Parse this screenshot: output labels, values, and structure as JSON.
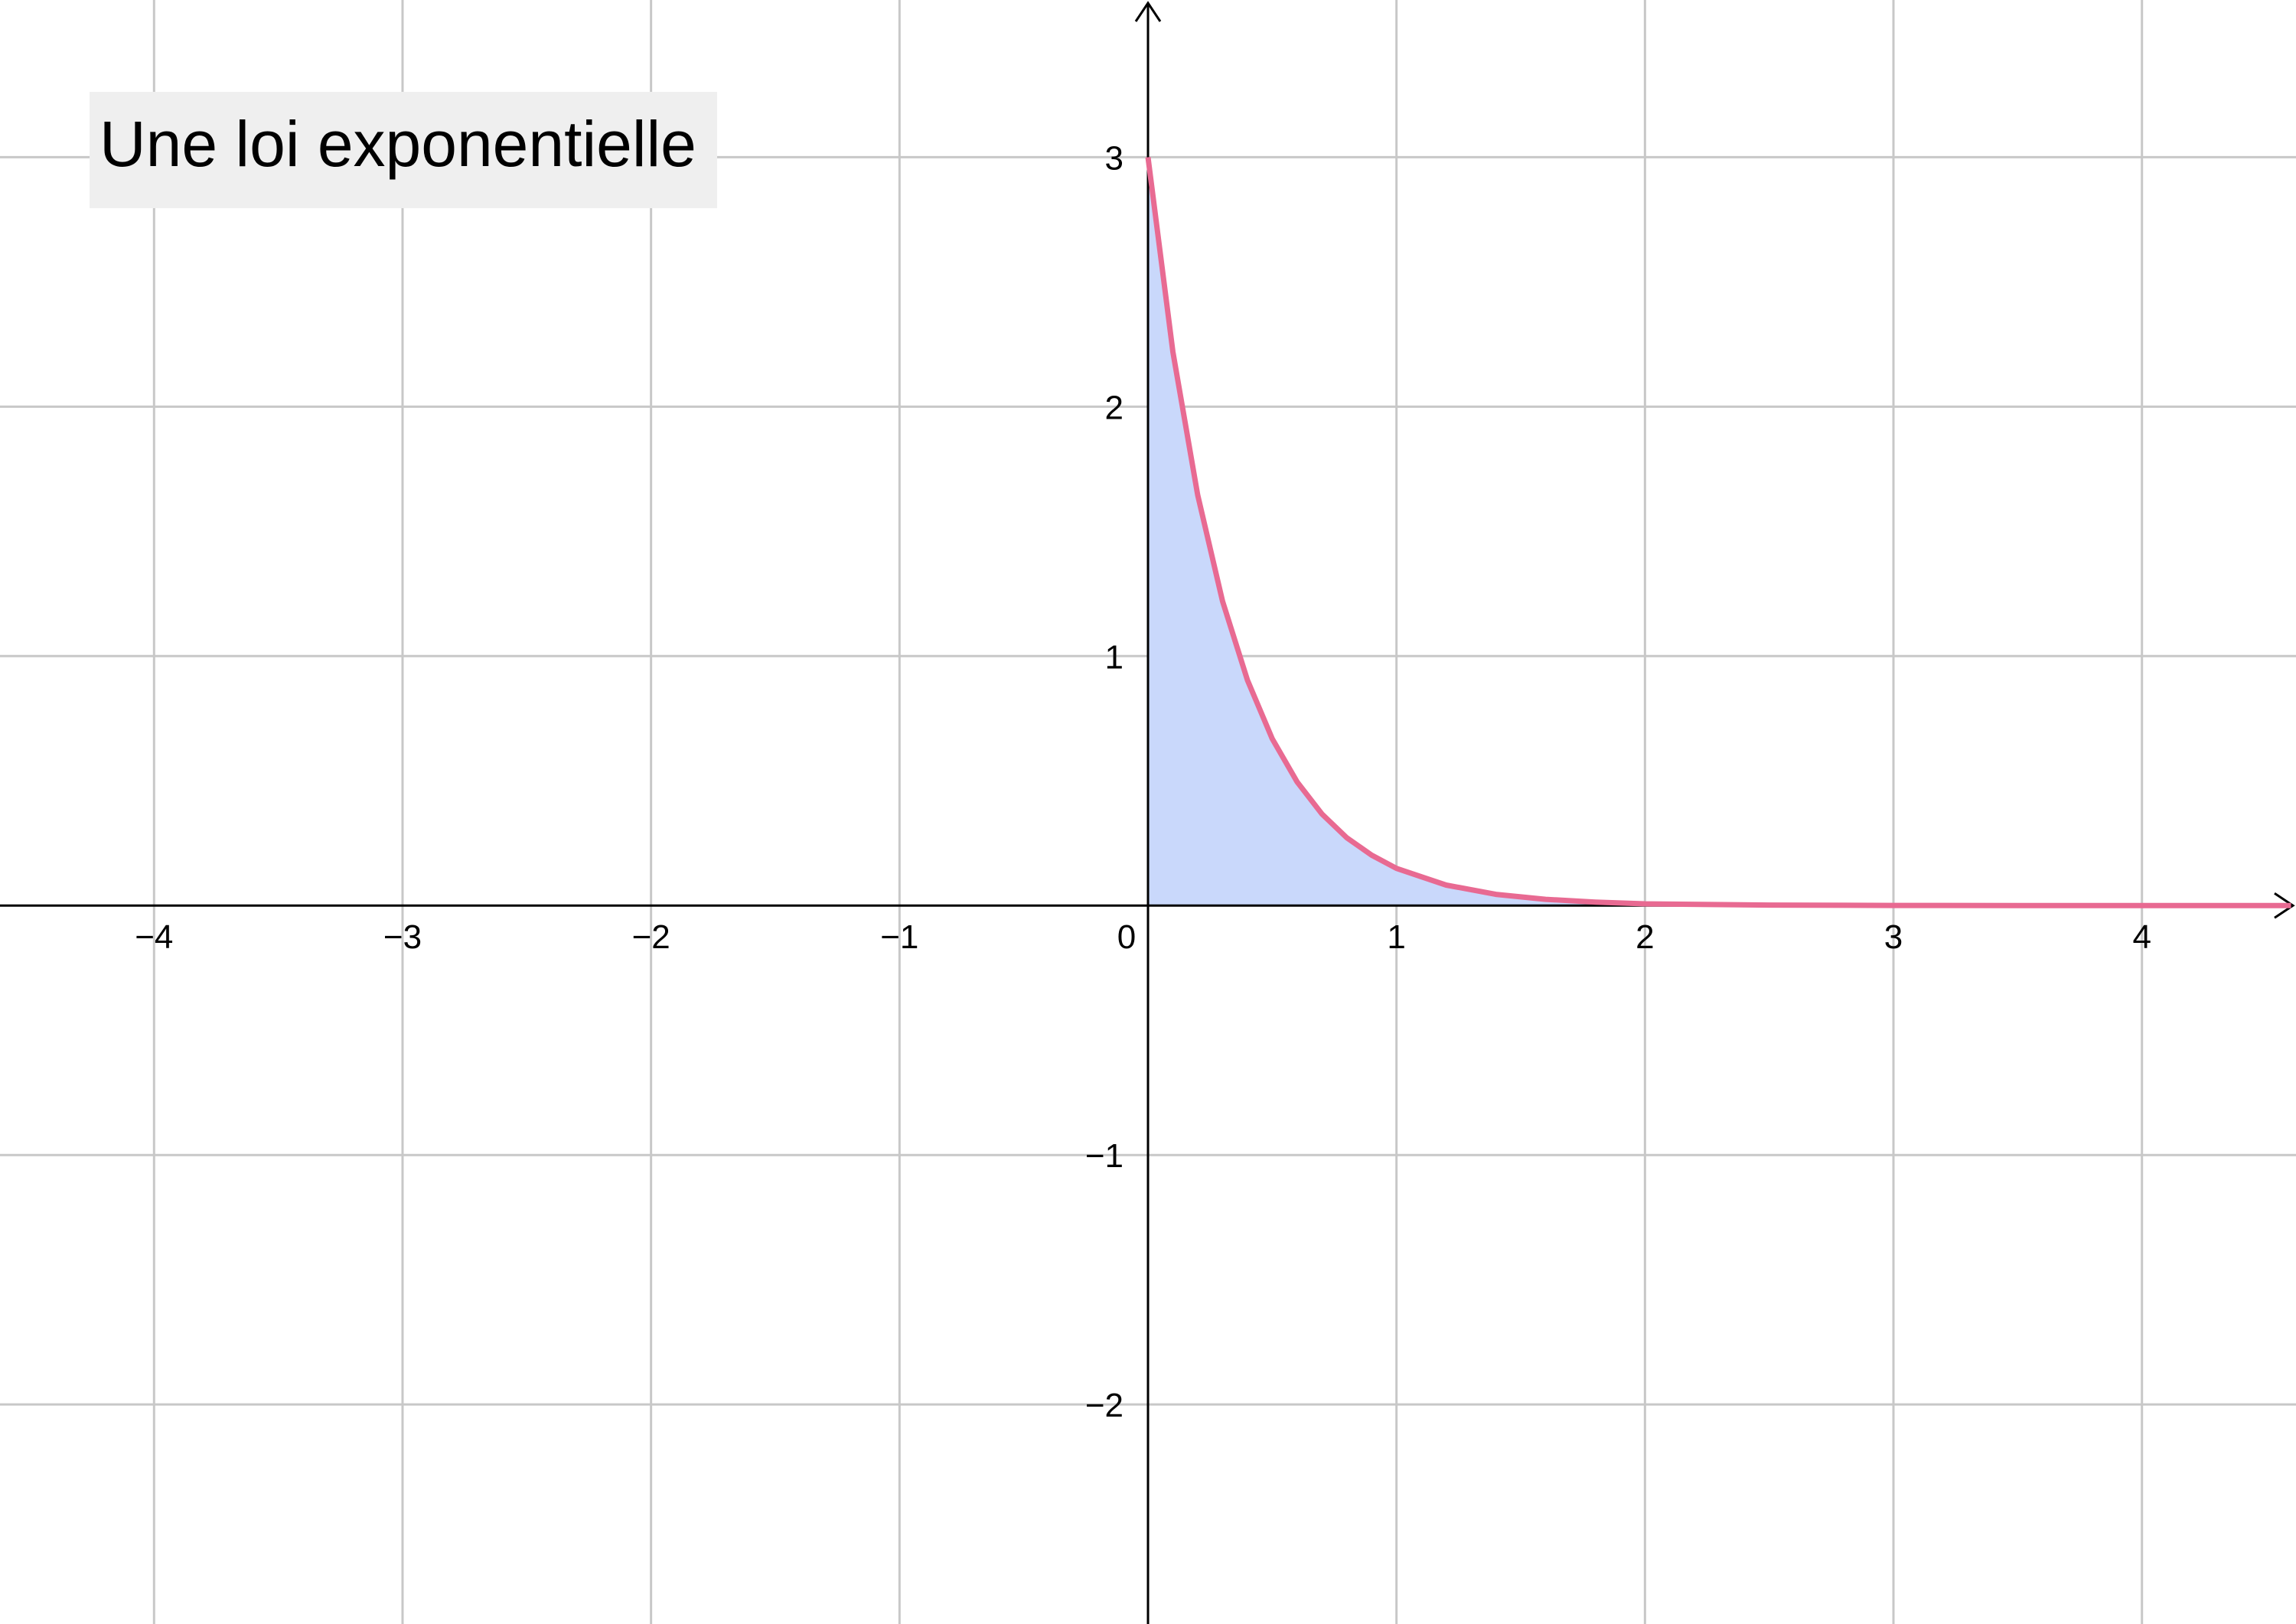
{
  "chart_data": {
    "type": "area",
    "title": "Une loi exponentielle",
    "xlabel": "",
    "ylabel": "",
    "xlim": [
      -4.62,
      4.62
    ],
    "ylim": [
      -2.88,
      3.63
    ],
    "grid": true,
    "x_ticks": [
      {
        "value": -4,
        "label": "−4"
      },
      {
        "value": -3,
        "label": "−3"
      },
      {
        "value": -2,
        "label": "−2"
      },
      {
        "value": -1,
        "label": "−1"
      },
      {
        "value": 0,
        "label": "0"
      },
      {
        "value": 1,
        "label": "1"
      },
      {
        "value": 2,
        "label": "2"
      },
      {
        "value": 3,
        "label": "3"
      },
      {
        "value": 4,
        "label": "4"
      }
    ],
    "y_ticks": [
      {
        "value": 3,
        "label": "3"
      },
      {
        "value": 2,
        "label": "2"
      },
      {
        "value": 1,
        "label": "1"
      },
      {
        "value": -1,
        "label": "−1"
      },
      {
        "value": -2,
        "label": "−2"
      }
    ],
    "series": [
      {
        "x": [
          0,
          0.1,
          0.2,
          0.3,
          0.4,
          0.5,
          0.6,
          0.7,
          0.8,
          0.9,
          1.0,
          1.2,
          1.4,
          1.6,
          1.8,
          2.0,
          2.5,
          3.0,
          3.5,
          4.0,
          4.6
        ],
        "y": [
          3.0,
          2.22,
          1.646,
          1.22,
          0.904,
          0.669,
          0.496,
          0.367,
          0.272,
          0.202,
          0.149,
          0.082,
          0.045,
          0.025,
          0.014,
          0.007,
          0.002,
          0.0004,
          0.0001,
          0.0,
          0.0
        ]
      }
    ],
    "colors": {
      "curve": "#e86a92",
      "fill": "#c9d8fb",
      "grid": "#c8c8c8",
      "axes": "#000000",
      "title_box": "#efefef"
    }
  }
}
